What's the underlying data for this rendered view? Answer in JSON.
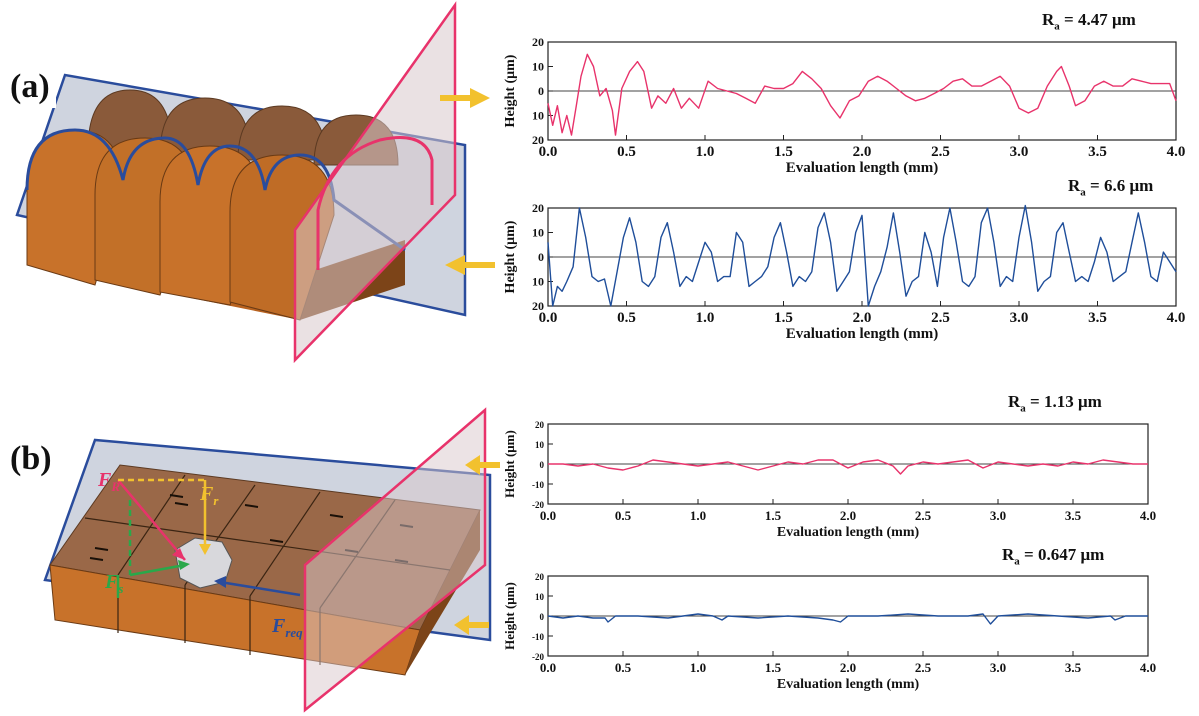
{
  "panels": [
    {
      "label": "(a)"
    },
    {
      "label": "(b)"
    }
  ],
  "forces": {
    "fr_main": "F",
    "fr_sub": "R",
    "ft_main": "F",
    "ft_sub": "r",
    "fs_main": "F",
    "fs_sub": "s",
    "freq_main": "F",
    "freq_sub": "req"
  },
  "colors": {
    "pink_series": "#e8336b",
    "blue_series": "#1f4e9a",
    "copper": "#c8722a",
    "plane_blue": "#2a4c9c",
    "plane_pink": "#e8336b",
    "arrow": "#f2c12e"
  },
  "chart_data": [
    {
      "type": "line",
      "ra_prefix": "R",
      "ra_sub": "a",
      "ra_value": " = 4.47 μm",
      "xlabel": "Evaluation length (mm)",
      "ylabel": "Height (μm)",
      "xlim": [
        0,
        4
      ],
      "ylim": [
        -20,
        20
      ],
      "xticks": [
        "0.0",
        "0.5",
        "1.0",
        "1.5",
        "2.0",
        "2.5",
        "3.0",
        "3.5",
        "4.0"
      ],
      "yticks": [
        "20",
        "10",
        "0",
        "10",
        "20"
      ],
      "series": [
        {
          "color": "#e8336b",
          "x": [
            0,
            0.03,
            0.06,
            0.09,
            0.12,
            0.15,
            0.18,
            0.21,
            0.25,
            0.29,
            0.33,
            0.37,
            0.41,
            0.43,
            0.47,
            0.52,
            0.57,
            0.61,
            0.66,
            0.7,
            0.75,
            0.8,
            0.85,
            0.9,
            0.96,
            1.02,
            1.08,
            1.14,
            1.2,
            1.26,
            1.32,
            1.38,
            1.44,
            1.5,
            1.56,
            1.62,
            1.68,
            1.74,
            1.8,
            1.86,
            1.92,
            1.98,
            2.04,
            2.1,
            2.16,
            2.22,
            2.28,
            2.34,
            2.4,
            2.46,
            2.52,
            2.58,
            2.64,
            2.7,
            2.76,
            2.82,
            2.88,
            2.94,
            3.0,
            3.06,
            3.12,
            3.18,
            3.24,
            3.27,
            3.32,
            3.36,
            3.42,
            3.48,
            3.54,
            3.6,
            3.66,
            3.72,
            3.78,
            3.84,
            3.9,
            3.96,
            4.0
          ],
          "y": [
            -5,
            -14,
            -6,
            -17,
            -10,
            -18,
            -6,
            6,
            15,
            10,
            -2,
            1,
            -8,
            -18,
            1,
            8,
            12,
            8,
            -7,
            -2,
            -5,
            1,
            -7,
            -3,
            -7,
            4,
            1,
            0,
            -1,
            -3,
            -5,
            2,
            1,
            1,
            3,
            8,
            5,
            1,
            -6,
            -11,
            -4,
            -2,
            4,
            6,
            4,
            1,
            -2,
            -4,
            -3,
            -1,
            1,
            4,
            5,
            2,
            2,
            4,
            6,
            2,
            -7,
            -9,
            -7,
            2,
            8,
            10,
            2,
            -6,
            -4,
            2,
            4,
            2,
            2,
            5,
            4,
            3,
            3,
            3,
            -4
          ]
        }
      ]
    },
    {
      "type": "line",
      "ra_prefix": "R",
      "ra_sub": "a",
      "ra_value": " = 6.6 μm",
      "xlabel": "Evaluation length (mm)",
      "ylabel": "Height (μm)",
      "xlim": [
        0,
        4
      ],
      "ylim": [
        -20,
        20
      ],
      "xticks": [
        "0.0",
        "0.5",
        "1.0",
        "1.5",
        "2.0",
        "2.5",
        "3.0",
        "3.5",
        "4.0"
      ],
      "yticks": [
        "20",
        "10",
        "0",
        "10",
        "20"
      ],
      "series": [
        {
          "color": "#1f4e9a",
          "x": [
            0,
            0.03,
            0.06,
            0.09,
            0.12,
            0.16,
            0.2,
            0.24,
            0.28,
            0.32,
            0.36,
            0.4,
            0.44,
            0.48,
            0.52,
            0.56,
            0.6,
            0.64,
            0.68,
            0.72,
            0.76,
            0.8,
            0.84,
            0.88,
            0.92,
            0.96,
            1.0,
            1.04,
            1.08,
            1.12,
            1.16,
            1.2,
            1.24,
            1.28,
            1.32,
            1.36,
            1.4,
            1.44,
            1.48,
            1.52,
            1.56,
            1.6,
            1.64,
            1.68,
            1.72,
            1.76,
            1.8,
            1.84,
            1.88,
            1.92,
            1.96,
            2.0,
            2.04,
            2.08,
            2.12,
            2.16,
            2.2,
            2.24,
            2.28,
            2.32,
            2.36,
            2.4,
            2.44,
            2.48,
            2.52,
            2.56,
            2.6,
            2.64,
            2.68,
            2.72,
            2.76,
            2.8,
            2.84,
            2.88,
            2.92,
            2.96,
            3.0,
            3.04,
            3.08,
            3.12,
            3.16,
            3.2,
            3.24,
            3.28,
            3.32,
            3.36,
            3.4,
            3.44,
            3.48,
            3.52,
            3.56,
            3.6,
            3.64,
            3.68,
            3.72,
            3.76,
            3.8,
            3.84,
            3.88,
            3.92,
            3.96,
            4.0
          ],
          "y": [
            6,
            -20,
            -12,
            -14,
            -10,
            -4,
            20,
            8,
            -8,
            -10,
            -9,
            -20,
            -6,
            8,
            16,
            6,
            -10,
            -12,
            -8,
            8,
            14,
            2,
            -12,
            -8,
            -10,
            -2,
            6,
            2,
            -10,
            -8,
            -8,
            10,
            6,
            -12,
            -10,
            -8,
            -4,
            8,
            14,
            2,
            -12,
            -8,
            -10,
            -6,
            12,
            18,
            6,
            -14,
            -10,
            -6,
            10,
            17,
            -20,
            -12,
            -6,
            4,
            18,
            2,
            -16,
            -10,
            -8,
            10,
            2,
            -12,
            8,
            20,
            6,
            -10,
            -12,
            -8,
            14,
            20,
            6,
            -12,
            -8,
            -10,
            8,
            21,
            6,
            -14,
            -10,
            -8,
            10,
            14,
            2,
            -10,
            -8,
            -10,
            -2,
            8,
            2,
            -10,
            -8,
            -6,
            6,
            18,
            6,
            -8,
            -10,
            2,
            -2,
            -6
          ]
        }
      ]
    },
    {
      "type": "line",
      "ra_prefix": "R",
      "ra_sub": "a",
      "ra_value": " = 1.13 μm",
      "xlabel": "Evaluation length (mm)",
      "ylabel": "Height (μm)",
      "xlim": [
        0,
        4
      ],
      "ylim": [
        -20,
        20
      ],
      "xticks": [
        "0.0",
        "0.5",
        "1.0",
        "1.5",
        "2.0",
        "2.5",
        "3.0",
        "3.5",
        "4.0"
      ],
      "yticks": [
        "20",
        "10",
        "0",
        "-10",
        "-20"
      ],
      "series": [
        {
          "color": "#e8336b",
          "x": [
            0,
            0.1,
            0.2,
            0.3,
            0.4,
            0.5,
            0.6,
            0.7,
            0.8,
            0.9,
            1.0,
            1.1,
            1.2,
            1.3,
            1.4,
            1.5,
            1.6,
            1.7,
            1.8,
            1.9,
            2.0,
            2.1,
            2.2,
            2.3,
            2.35,
            2.4,
            2.5,
            2.6,
            2.7,
            2.8,
            2.9,
            3.0,
            3.1,
            3.2,
            3.3,
            3.4,
            3.5,
            3.6,
            3.7,
            3.8,
            3.9,
            4.0
          ],
          "y": [
            0,
            0,
            -1,
            0,
            -2,
            -3,
            -1,
            2,
            1,
            0,
            -1,
            0,
            1,
            -1,
            -3,
            -1,
            1,
            0,
            2,
            2,
            -2,
            1,
            2,
            -1,
            -5,
            -1,
            1,
            0,
            1,
            2,
            -2,
            1,
            0,
            -1,
            0,
            -1,
            1,
            0,
            2,
            1,
            0,
            0
          ]
        }
      ]
    },
    {
      "type": "line",
      "ra_prefix": "R",
      "ra_sub": "a",
      "ra_value": " = 0.647 μm",
      "xlabel": "Evaluation length (mm)",
      "ylabel": "Height (μm)",
      "xlim": [
        0,
        4
      ],
      "ylim": [
        -20,
        20
      ],
      "xticks": [
        "0.0",
        "0.5",
        "1.0",
        "1.5",
        "2.0",
        "2.5",
        "3.0",
        "3.5",
        "4.0"
      ],
      "yticks": [
        "20",
        "10",
        "0",
        "-10",
        "-20"
      ],
      "series": [
        {
          "color": "#1f4e9a",
          "x": [
            0,
            0.1,
            0.2,
            0.3,
            0.38,
            0.4,
            0.45,
            0.6,
            0.8,
            1.0,
            1.1,
            1.16,
            1.2,
            1.4,
            1.6,
            1.8,
            1.9,
            1.95,
            2.0,
            2.2,
            2.4,
            2.6,
            2.8,
            2.9,
            2.95,
            3.0,
            3.2,
            3.4,
            3.6,
            3.75,
            3.78,
            3.85,
            4.0
          ],
          "y": [
            0,
            -1,
            0,
            -1,
            -1,
            -3,
            0,
            0,
            -1,
            1,
            0,
            -2,
            0,
            -1,
            0,
            -1,
            -2,
            -3,
            0,
            0,
            1,
            0,
            0,
            1,
            -4,
            0,
            1,
            0,
            -1,
            0,
            -2,
            0,
            0
          ]
        }
      ]
    }
  ]
}
